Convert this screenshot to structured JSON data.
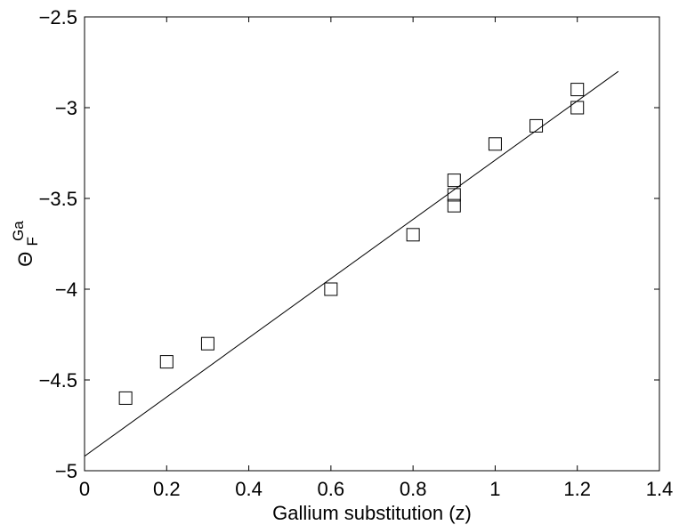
{
  "chart_data": {
    "type": "scatter",
    "title": "",
    "xlabel": "Gallium substitution (z)",
    "ylabel": {
      "base": "Θ",
      "superscript": "Ga",
      "subscript": "F"
    },
    "xlim": [
      0,
      1.4
    ],
    "ylim": [
      -5,
      -2.5
    ],
    "x_ticks": [
      0,
      0.2,
      0.4,
      0.6,
      0.8,
      1,
      1.2,
      1.4
    ],
    "x_tick_labels": [
      "0",
      "0.2",
      "0.4",
      "0.6",
      "0.8",
      "1",
      "1.2",
      "1.4"
    ],
    "y_ticks": [
      -5,
      -4.5,
      -4,
      -3.5,
      -3,
      -2.5
    ],
    "y_tick_labels": [
      "−5",
      "−4.5",
      "−4",
      "−3.5",
      "−3",
      "−2.5"
    ],
    "grid": false,
    "legend": "none",
    "series": [
      {
        "marker": "open-square",
        "color": "#000000",
        "points": [
          {
            "x": 0.1,
            "y": -4.6
          },
          {
            "x": 0.2,
            "y": -4.4
          },
          {
            "x": 0.3,
            "y": -4.3
          },
          {
            "x": 0.6,
            "y": -4.0
          },
          {
            "x": 0.8,
            "y": -3.7
          },
          {
            "x": 0.9,
            "y": -3.4
          },
          {
            "x": 0.9,
            "y": -3.48
          },
          {
            "x": 0.9,
            "y": -3.54
          },
          {
            "x": 1.0,
            "y": -3.2
          },
          {
            "x": 1.1,
            "y": -3.1
          },
          {
            "x": 1.2,
            "y": -2.9
          },
          {
            "x": 1.2,
            "y": -3.0
          }
        ]
      }
    ],
    "fit_line": {
      "color": "#000000",
      "points": [
        {
          "x": 0,
          "y": -4.92
        },
        {
          "x": 1.3,
          "y": -2.8
        }
      ]
    }
  }
}
